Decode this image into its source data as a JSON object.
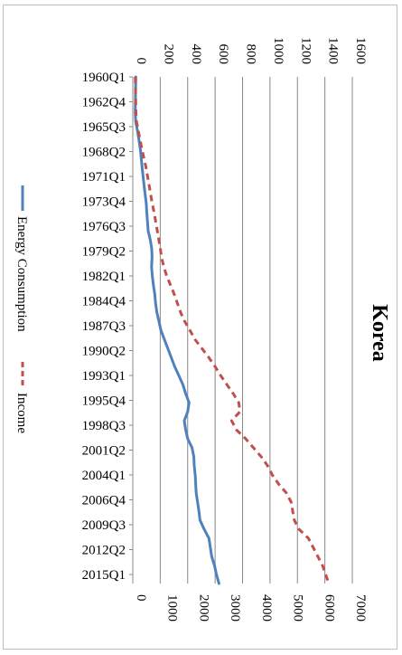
{
  "chart_data": {
    "type": "line",
    "title": "Korea",
    "x_tick_labels": [
      "1960Q1",
      "1962Q4",
      "1965Q3",
      "1968Q2",
      "1971Q1",
      "1973Q4",
      "1976Q3",
      "1979Q2",
      "1982Q1",
      "1984Q4",
      "1987Q3",
      "1990Q2",
      "1993Q1",
      "1995Q4",
      "1998Q3",
      "2001Q2",
      "2004Q1",
      "2006Q4",
      "2009Q3",
      "2012Q2",
      "2015Q1"
    ],
    "x_tick_years": [
      1960,
      1962.75,
      1965.5,
      1968.25,
      1971,
      1973.75,
      1976.5,
      1979.25,
      1982,
      1984.75,
      1987.5,
      1990.25,
      1993,
      1995.75,
      1998.5,
      2001.25,
      2004,
      2006.75,
      2009.5,
      2012.25,
      2015
    ],
    "xlim": [
      1960,
      2016
    ],
    "y_left": {
      "ticks": [
        0,
        200,
        400,
        600,
        800,
        1000,
        1200,
        1400,
        1600
      ],
      "lim": [
        0,
        1600
      ]
    },
    "y_right": {
      "ticks": [
        0,
        1000,
        2000,
        3000,
        4000,
        5000,
        6000,
        7000
      ],
      "lim": [
        0,
        7000
      ]
    },
    "legend_position": "bottom",
    "grid": true,
    "series": [
      {
        "name": "Energy Consumption",
        "axis": "left",
        "color": "#4f81bd",
        "style": "solid",
        "x": [
          1960,
          1962,
          1964,
          1965,
          1966,
          1968,
          1970,
          1972,
          1974,
          1975,
          1977,
          1978,
          1979,
          1980,
          1981,
          1982,
          1983,
          1984,
          1985,
          1986,
          1987,
          1988,
          1989,
          1990,
          1991,
          1992,
          1993,
          1994,
          1995,
          1996,
          1997,
          1998,
          1999,
          2000,
          2001,
          2002,
          2003,
          2004,
          2005,
          2006,
          2007,
          2008,
          2009,
          2010,
          2011,
          2012,
          2013,
          2014,
          2015,
          2016
        ],
        "values": [
          22,
          20,
          18,
          22,
          35,
          55,
          68,
          82,
          98,
          102,
          112,
          127,
          138,
          140,
          137,
          142,
          150,
          160,
          166,
          175,
          190,
          205,
          230,
          255,
          280,
          305,
          335,
          365,
          385,
          410,
          400,
          375,
          385,
          400,
          432,
          445,
          448,
          455,
          458,
          462,
          472,
          482,
          490,
          520,
          555,
          565,
          575,
          595,
          610,
          628
        ]
      },
      {
        "name": "Income",
        "axis": "right",
        "color": "#c0504d",
        "style": "dashed",
        "x": [
          1960,
          1962,
          1964,
          1965,
          1966,
          1968,
          1970,
          1972,
          1974,
          1975,
          1977,
          1978,
          1979,
          1980,
          1981,
          1982,
          1983,
          1984,
          1985,
          1986,
          1987,
          1988,
          1989,
          1990,
          1991,
          1992,
          1993,
          1994,
          1995,
          1996,
          1997,
          1998,
          1999,
          2000,
          2001,
          2002,
          2003,
          2004,
          2005,
          2006,
          2007,
          2008,
          2009,
          2010,
          2011,
          2012,
          2013,
          2014,
          2015,
          2016
        ],
        "values": [
          80,
          90,
          100,
          120,
          180,
          290,
          420,
          520,
          620,
          680,
          780,
          830,
          880,
          920,
          990,
          1080,
          1200,
          1320,
          1420,
          1520,
          1650,
          1820,
          1980,
          2200,
          2420,
          2620,
          2800,
          3000,
          3200,
          3380,
          3420,
          3150,
          3300,
          3600,
          3850,
          4100,
          4300,
          4450,
          4650,
          4900,
          5050,
          5100,
          5150,
          5300,
          5600,
          5750,
          5900,
          6050,
          6150,
          6250
        ]
      }
    ]
  }
}
